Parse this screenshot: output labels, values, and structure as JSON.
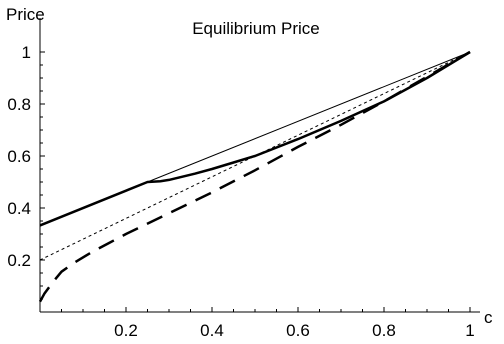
{
  "chart_data": {
    "type": "line",
    "title": "Equilibrium Price",
    "ylabel": "Price",
    "xlabel": "c",
    "xlim": [
      0,
      1
    ],
    "ylim": [
      0,
      1
    ],
    "x_ticks": [
      0.2,
      0.4,
      0.6,
      0.8,
      1
    ],
    "x_tick_labels": [
      "0.2",
      "0.4",
      "0.6",
      "0.8",
      "1"
    ],
    "y_ticks": [
      0.2,
      0.4,
      0.6,
      0.8,
      1
    ],
    "y_tick_labels": [
      "0.2",
      "0.4",
      "0.6",
      "0.8",
      "1"
    ],
    "grid": false,
    "legend": "none",
    "series": [
      {
        "style": "thin-solid",
        "x": [
          0.25,
          1.0
        ],
        "y": [
          0.5,
          1.0
        ]
      },
      {
        "style": "thick-solid",
        "x": [
          0.0,
          0.25,
          0.28,
          0.3,
          0.33,
          0.36,
          0.4,
          0.45,
          0.5,
          0.6,
          0.7,
          0.8,
          0.9,
          1.0
        ],
        "y": [
          0.333,
          0.5,
          0.503,
          0.508,
          0.52,
          0.532,
          0.55,
          0.575,
          0.6,
          0.665,
          0.735,
          0.81,
          0.9,
          1.0
        ]
      },
      {
        "style": "thin-dashed",
        "x": [
          0.0,
          1.0
        ],
        "y": [
          0.2,
          1.0
        ]
      },
      {
        "style": "thick-long-dashed",
        "x": [
          0.0,
          0.01,
          0.03,
          0.05,
          0.08,
          0.12,
          0.16,
          0.2,
          0.25,
          0.3,
          0.35,
          0.4,
          0.5,
          0.6,
          0.7,
          0.8,
          0.9,
          1.0
        ],
        "y": [
          0.04,
          0.07,
          0.115,
          0.155,
          0.19,
          0.23,
          0.265,
          0.3,
          0.34,
          0.38,
          0.42,
          0.46,
          0.545,
          0.635,
          0.72,
          0.81,
          0.905,
          1.0
        ]
      }
    ]
  }
}
